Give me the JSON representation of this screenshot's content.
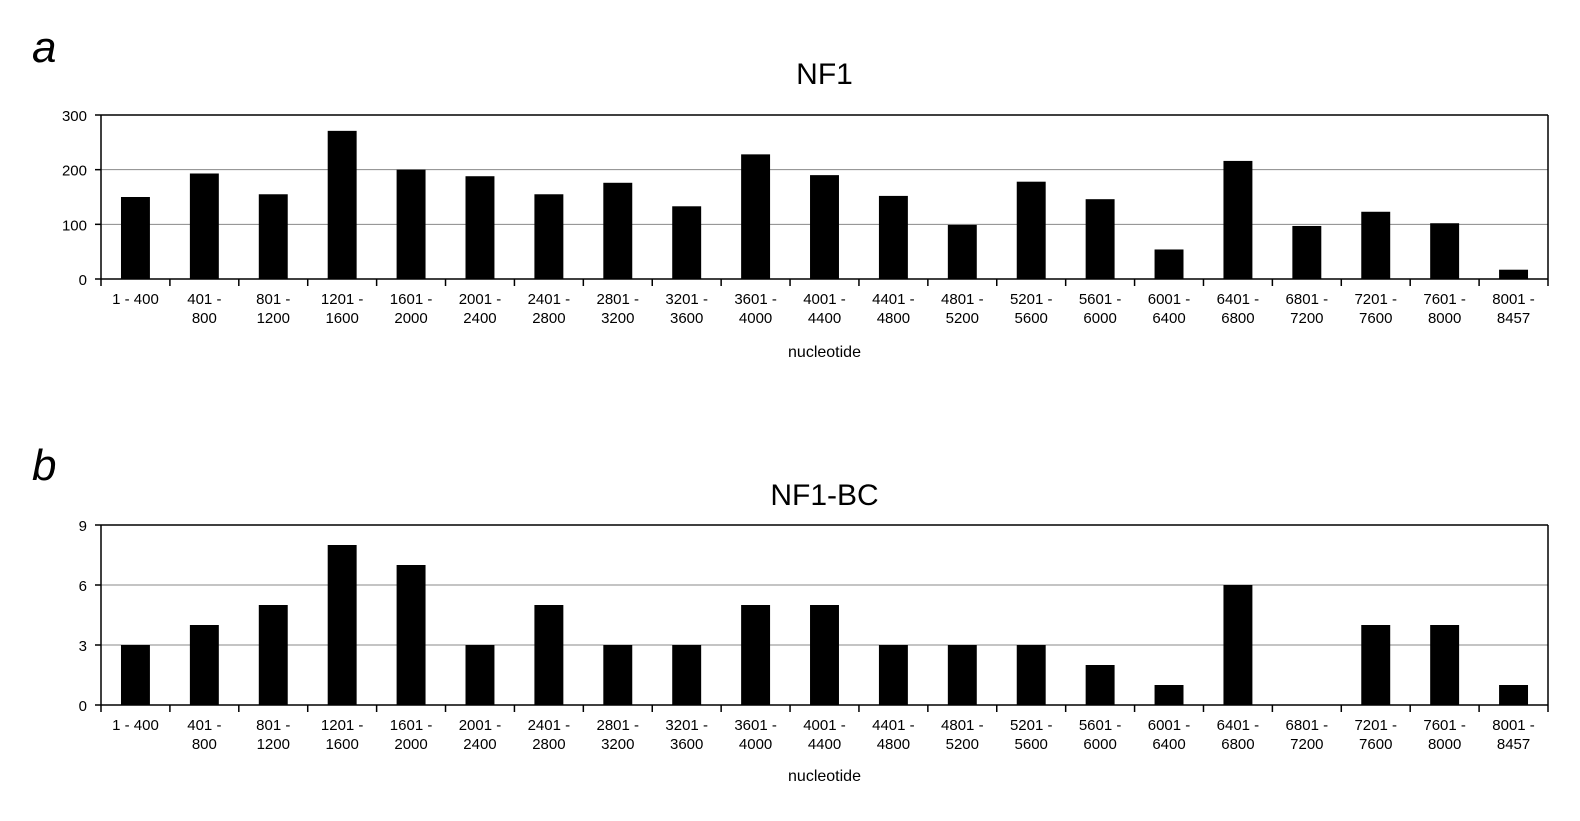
{
  "panels": [
    {
      "letter": "a",
      "chart_data": {
        "type": "bar",
        "title": "NF1",
        "xlabel": "nucleotide",
        "ylabel": "",
        "ylim": [
          0,
          300
        ],
        "yticks": [
          0,
          100,
          200,
          300
        ],
        "grid": true,
        "categories": [
          "1 - 400",
          "401 - 800",
          "801 - 1200",
          "1201 - 1600",
          "1601 - 2000",
          "2001 - 2400",
          "2401 - 2800",
          "2801 - 3200",
          "3201 - 3600",
          "3601 - 4000",
          "4001 - 4400",
          "4401 - 4800",
          "4801 - 5200",
          "5201 - 5600",
          "5601 - 6000",
          "6001 - 6400",
          "6401 - 6800",
          "6801 - 7200",
          "7201 - 7600",
          "7601 - 8000",
          "8001 - 8457"
        ],
        "values": [
          150,
          193,
          155,
          271,
          200,
          188,
          155,
          176,
          133,
          228,
          190,
          152,
          99,
          178,
          146,
          54,
          216,
          97,
          123,
          102,
          17
        ],
        "bar_color": "#000000"
      }
    },
    {
      "letter": "b",
      "chart_data": {
        "type": "bar",
        "title": "NF1-BC",
        "xlabel": "nucleotide",
        "ylabel": "",
        "ylim": [
          0,
          9
        ],
        "yticks": [
          0,
          3,
          6,
          9
        ],
        "grid": true,
        "categories": [
          "1 - 400",
          "401 - 800",
          "801 - 1200",
          "1201 - 1600",
          "1601 - 2000",
          "2001 - 2400",
          "2401 - 2800",
          "2801 - 3200",
          "3201 - 3600",
          "3601 - 4000",
          "4001 - 4400",
          "4401 - 4800",
          "4801 - 5200",
          "5201 - 5600",
          "5601 - 6000",
          "6001 - 6400",
          "6401 - 6800",
          "6801 - 7200",
          "7201 - 7600",
          "7601 - 8000",
          "8001 - 8457"
        ],
        "values": [
          3,
          4,
          5,
          8,
          7,
          3,
          5,
          3,
          3,
          5,
          5,
          3,
          3,
          3,
          2,
          1,
          6,
          0,
          4,
          4,
          1
        ],
        "bar_color": "#000000"
      }
    }
  ]
}
